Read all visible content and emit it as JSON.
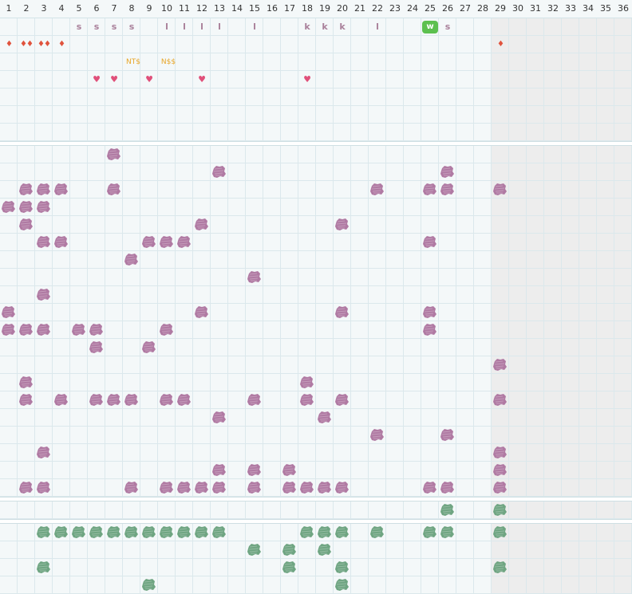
{
  "columns": [
    "1",
    "2",
    "3",
    "4",
    "5",
    "6",
    "7",
    "8",
    "9",
    "10",
    "11",
    "12",
    "13",
    "14",
    "15",
    "16",
    "17",
    "18",
    "19",
    "20",
    "21",
    "22",
    "23",
    "24",
    "25",
    "26",
    "27",
    "28",
    "29",
    "30",
    "31",
    "32",
    "33",
    "34",
    "35",
    "36"
  ],
  "colors": {
    "grid_bg": "#f4f8f9",
    "grid_line": "#dbe8ec",
    "shaded_bg": "#ededed",
    "letter": "#a9809a",
    "drop": "#e0533d",
    "heart": "#e0507a",
    "currency": "#e8a628",
    "blob_purple": "#b07aa3",
    "blob_green": "#6fa582",
    "chip_green": "#5cc04f"
  },
  "top_section": {
    "letters": [
      {
        "col": 5,
        "row": 0,
        "text": "s"
      },
      {
        "col": 6,
        "row": 0,
        "text": "s"
      },
      {
        "col": 7,
        "row": 0,
        "text": "s"
      },
      {
        "col": 8,
        "row": 0,
        "text": "s"
      },
      {
        "col": 10,
        "row": 0,
        "text": "l"
      },
      {
        "col": 11,
        "row": 0,
        "text": "l"
      },
      {
        "col": 12,
        "row": 0,
        "text": "l"
      },
      {
        "col": 13,
        "row": 0,
        "text": "l"
      },
      {
        "col": 15,
        "row": 0,
        "text": "l"
      },
      {
        "col": 18,
        "row": 0,
        "text": "k"
      },
      {
        "col": 19,
        "row": 0,
        "text": "k"
      },
      {
        "col": 20,
        "row": 0,
        "text": "k"
      },
      {
        "col": 22,
        "row": 0,
        "text": "l"
      },
      {
        "col": 26,
        "row": 0,
        "text": "s"
      }
    ],
    "chips": [
      {
        "col": 25,
        "row": 0,
        "text": "w"
      }
    ],
    "drops": [
      {
        "col": 1,
        "row": 1,
        "count": 1
      },
      {
        "col": 2,
        "row": 1,
        "count": 2
      },
      {
        "col": 3,
        "row": 1,
        "count": 2
      },
      {
        "col": 4,
        "row": 1,
        "count": 1
      },
      {
        "col": 29,
        "row": 1,
        "count": 1
      }
    ],
    "currency": [
      {
        "col": 8,
        "row": 2,
        "text": "NT$"
      },
      {
        "col": 10,
        "row": 2,
        "text": "N$$"
      }
    ],
    "hearts": [
      {
        "col": 6,
        "row": 3
      },
      {
        "col": 7,
        "row": 3
      },
      {
        "col": 9,
        "row": 3
      },
      {
        "col": 12,
        "row": 3
      },
      {
        "col": 18,
        "row": 3
      }
    ]
  },
  "purple_marks": [
    [
      7,
      0
    ],
    [
      13,
      1
    ],
    [
      26,
      1
    ],
    [
      2,
      2
    ],
    [
      3,
      2
    ],
    [
      4,
      2
    ],
    [
      7,
      2
    ],
    [
      22,
      2
    ],
    [
      25,
      2
    ],
    [
      26,
      2
    ],
    [
      29,
      2
    ],
    [
      1,
      3
    ],
    [
      2,
      3
    ],
    [
      3,
      3
    ],
    [
      2,
      4
    ],
    [
      12,
      4
    ],
    [
      20,
      4
    ],
    [
      3,
      5
    ],
    [
      4,
      5
    ],
    [
      9,
      5
    ],
    [
      10,
      5
    ],
    [
      11,
      5
    ],
    [
      25,
      5
    ],
    [
      8,
      6
    ],
    [
      15,
      7
    ],
    [
      3,
      8
    ],
    [
      1,
      9
    ],
    [
      12,
      9
    ],
    [
      20,
      9
    ],
    [
      25,
      9
    ],
    [
      1,
      10
    ],
    [
      2,
      10
    ],
    [
      3,
      10
    ],
    [
      5,
      10
    ],
    [
      6,
      10
    ],
    [
      10,
      10
    ],
    [
      25,
      10
    ],
    [
      6,
      11
    ],
    [
      9,
      11
    ],
    [
      29,
      12
    ],
    [
      2,
      13
    ],
    [
      18,
      13
    ],
    [
      2,
      14
    ],
    [
      4,
      14
    ],
    [
      6,
      14
    ],
    [
      7,
      14
    ],
    [
      8,
      14
    ],
    [
      10,
      14
    ],
    [
      11,
      14
    ],
    [
      15,
      14
    ],
    [
      18,
      14
    ],
    [
      20,
      14
    ],
    [
      29,
      14
    ],
    [
      13,
      15
    ],
    [
      19,
      15
    ],
    [
      22,
      16
    ],
    [
      26,
      16
    ],
    [
      3,
      17
    ],
    [
      29,
      17
    ],
    [
      13,
      18
    ],
    [
      15,
      18
    ],
    [
      17,
      18
    ],
    [
      29,
      18
    ],
    [
      2,
      19
    ],
    [
      3,
      19
    ],
    [
      8,
      19
    ],
    [
      10,
      19
    ],
    [
      11,
      19
    ],
    [
      12,
      19
    ],
    [
      13,
      19
    ],
    [
      15,
      19
    ],
    [
      17,
      19
    ],
    [
      18,
      19
    ],
    [
      19,
      19
    ],
    [
      20,
      19
    ],
    [
      25,
      19
    ],
    [
      26,
      19
    ],
    [
      29,
      19
    ]
  ],
  "single_row_marks": [
    [
      26,
      0
    ],
    [
      29,
      0
    ]
  ],
  "green_marks": [
    [
      3,
      0
    ],
    [
      4,
      0
    ],
    [
      5,
      0
    ],
    [
      6,
      0
    ],
    [
      7,
      0
    ],
    [
      8,
      0
    ],
    [
      9,
      0
    ],
    [
      10,
      0
    ],
    [
      11,
      0
    ],
    [
      12,
      0
    ],
    [
      13,
      0
    ],
    [
      18,
      0
    ],
    [
      19,
      0
    ],
    [
      20,
      0
    ],
    [
      22,
      0
    ],
    [
      25,
      0
    ],
    [
      26,
      0
    ],
    [
      29,
      0
    ],
    [
      15,
      1
    ],
    [
      17,
      1
    ],
    [
      19,
      1
    ],
    [
      3,
      2
    ],
    [
      17,
      2
    ],
    [
      20,
      2
    ],
    [
      29,
      2
    ],
    [
      9,
      3
    ],
    [
      20,
      3
    ]
  ]
}
